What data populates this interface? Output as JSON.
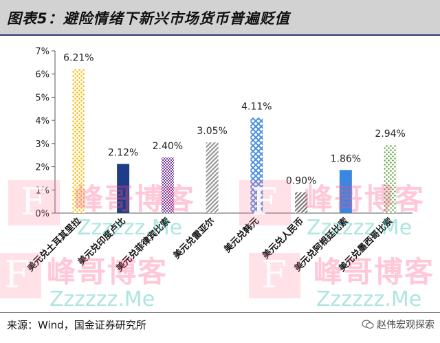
{
  "title": "图表5：避险情绪下新兴市场货币普遍贬值",
  "source": "来源：Wind，国金证券研究所",
  "wechat_credit": "赵伟宏观探索",
  "watermark": {
    "cn": "峰哥博客",
    "en": "Zzzzzz.Me",
    "mark": "F"
  },
  "chart_data": {
    "type": "bar",
    "title": "",
    "xlabel": "",
    "ylabel": "",
    "ylim": [
      0,
      7
    ],
    "yticks": [
      "0%",
      "1%",
      "2%",
      "3%",
      "4%",
      "5%",
      "6%",
      "7%"
    ],
    "grid": false,
    "legend": "none",
    "categories": [
      "美元兑土耳其里拉",
      "美元兑印度卢比",
      "美元兑菲律宾比索",
      "美元兑雷亚尔",
      "美元兑韩元",
      "美元兑人民币",
      "美元兑阿根廷比索",
      "美元兑墨西哥比索"
    ],
    "values": [
      6.21,
      2.12,
      2.4,
      3.05,
      4.11,
      0.9,
      1.86,
      2.94
    ],
    "data_labels": [
      "6.21%",
      "2.12%",
      "2.40%",
      "3.05%",
      "4.11%",
      "0.90%",
      "1.86%",
      "2.94%"
    ],
    "bar_colors": [
      "#f5b800",
      "#1f3c88",
      "#7b3fa0",
      "#9a9a9a",
      "#4a8fe0",
      "#7a7a7a",
      "#3a86e0",
      "#6aa84f"
    ],
    "bar_patterns": [
      "dots",
      "solid",
      "checker",
      "diagonal",
      "diamond",
      "diagonal",
      "solid",
      "dots"
    ]
  }
}
